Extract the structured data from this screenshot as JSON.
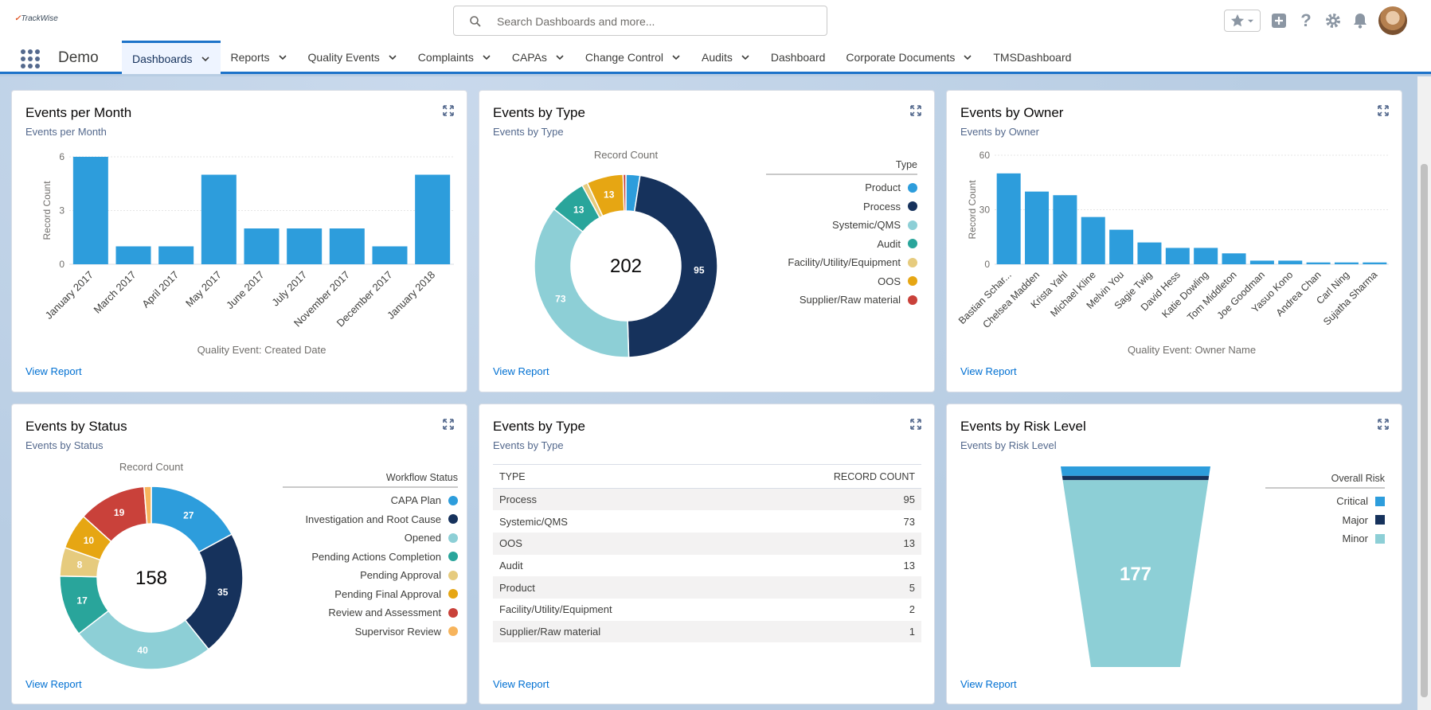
{
  "header": {
    "logo_text": "TrackWise",
    "search_placeholder": "Search Dashboards and more..."
  },
  "nav": {
    "app_name": "Demo",
    "tabs": [
      {
        "label": "Dashboards",
        "dropdown": true,
        "active": true
      },
      {
        "label": "Reports",
        "dropdown": true
      },
      {
        "label": "Quality Events",
        "dropdown": true
      },
      {
        "label": "Complaints",
        "dropdown": true
      },
      {
        "label": "CAPAs",
        "dropdown": true
      },
      {
        "label": "Change Control",
        "dropdown": true
      },
      {
        "label": "Audits",
        "dropdown": true
      },
      {
        "label": "Dashboard",
        "dropdown": false
      },
      {
        "label": "Corporate Documents",
        "dropdown": true
      },
      {
        "label": "TMSDashboard",
        "dropdown": false
      }
    ]
  },
  "colors": {
    "accent": "#1d73c9",
    "link": "#0070d2",
    "product": "#2d9ddc",
    "process": "#16325c",
    "systemic": "#8dcfd6",
    "audit": "#29a59b",
    "facility": "#e6cb7e",
    "oos": "#e6a613",
    "supplier": "#c9413a",
    "lightorange": "#f7b45c"
  },
  "view_report_label": "View Report",
  "cards": {
    "events_per_month": {
      "title": "Events per Month",
      "subtitle": "Events per Month",
      "ylabel": "Record Count",
      "xlabel": "Quality Event: Created Date",
      "ticks": [
        "6",
        "3",
        "0"
      ]
    },
    "events_by_type_donut": {
      "title": "Events by Type",
      "subtitle": "Events by Type",
      "chart_title": "Record Count",
      "total": "202",
      "legend_title": "Type"
    },
    "events_by_owner": {
      "title": "Events by Owner",
      "subtitle": "Events by Owner",
      "ylabel": "Record Count",
      "xlabel": "Quality Event: Owner Name",
      "ticks": [
        "60",
        "30",
        "0"
      ]
    },
    "events_by_status": {
      "title": "Events by Status",
      "subtitle": "Events by Status",
      "chart_title": "Record Count",
      "total": "158",
      "legend_title": "Workflow Status"
    },
    "events_by_type_table": {
      "title": "Events by Type",
      "subtitle": "Events by Type",
      "col_type": "TYPE",
      "col_count": "RECORD COUNT",
      "rows": [
        {
          "type": "Process",
          "count": "95"
        },
        {
          "type": "Systemic/QMS",
          "count": "73"
        },
        {
          "type": "OOS",
          "count": "13"
        },
        {
          "type": "Audit",
          "count": "13"
        },
        {
          "type": "Product",
          "count": "5"
        },
        {
          "type": "Facility/Utility/Equipment",
          "count": "2"
        },
        {
          "type": "Supplier/Raw material",
          "count": "1"
        }
      ]
    },
    "events_by_risk": {
      "title": "Events by Risk Level",
      "subtitle": "Events by Risk Level",
      "legend_title": "Overall Risk",
      "center_label": "177"
    }
  },
  "chart_data": [
    {
      "type": "bar",
      "title": "Events per Month",
      "xlabel": "Quality Event: Created Date",
      "ylabel": "Record Count",
      "categories": [
        "January 2017",
        "March 2017",
        "April 2017",
        "May 2017",
        "June 2017",
        "July 2017",
        "November 2017",
        "December 2017",
        "January 2018"
      ],
      "values": [
        6,
        1,
        1,
        5,
        2,
        2,
        2,
        1,
        5
      ],
      "ylim": [
        0,
        6
      ],
      "grid": true
    },
    {
      "type": "pie",
      "title": "Record Count",
      "legend_title": "Type",
      "legend_position": "right",
      "categories": [
        "Product",
        "Process",
        "Systemic/QMS",
        "Audit",
        "Facility/Utility/Equipment",
        "OOS",
        "Supplier/Raw material"
      ],
      "values": [
        5,
        95,
        73,
        13,
        2,
        13,
        1
      ],
      "colors": [
        "#2d9ddc",
        "#16325c",
        "#8dcfd6",
        "#29a59b",
        "#e6cb7e",
        "#e6a613",
        "#c9413a"
      ],
      "total": 202
    },
    {
      "type": "bar",
      "title": "Events by Owner",
      "xlabel": "Quality Event: Owner Name",
      "ylabel": "Record Count",
      "categories": [
        "Bastian Schar...",
        "Chelsea Madden",
        "Krista Yahl",
        "Michael Kline",
        "Melvin You",
        "Sagie Twig",
        "David Hess",
        "Katie Dowling",
        "Tom Middleton",
        "Joe Goodman",
        "Yasuo Kono",
        "Andrea Chan",
        "Carl Ning",
        "Sujatha Sharma"
      ],
      "values": [
        50,
        40,
        38,
        26,
        19,
        12,
        9,
        9,
        6,
        2,
        2,
        1,
        1,
        1
      ],
      "ylim": [
        0,
        60
      ],
      "grid": true
    },
    {
      "type": "pie",
      "title": "Record Count",
      "legend_title": "Workflow Status",
      "legend_position": "right",
      "categories": [
        "CAPA Plan",
        "Investigation and Root Cause",
        "Opened",
        "Pending Actions Completion",
        "Pending Approval",
        "Pending Final Approval",
        "Review and Assessment",
        "Supervisor Review"
      ],
      "values": [
        27,
        35,
        40,
        17,
        8,
        10,
        19,
        2
      ],
      "colors": [
        "#2d9ddc",
        "#16325c",
        "#8dcfd6",
        "#29a59b",
        "#e6cb7e",
        "#e6a613",
        "#c9413a",
        "#f7b45c"
      ],
      "total": 158
    },
    {
      "type": "table",
      "title": "Events by Type",
      "columns": [
        "TYPE",
        "RECORD COUNT"
      ],
      "rows": [
        [
          "Process",
          95
        ],
        [
          "Systemic/QMS",
          73
        ],
        [
          "OOS",
          13
        ],
        [
          "Audit",
          13
        ],
        [
          "Product",
          5
        ],
        [
          "Facility/Utility/Equipment",
          2
        ],
        [
          "Supplier/Raw material",
          1
        ]
      ]
    },
    {
      "type": "funnel",
      "title": "Events by Risk Level",
      "legend_title": "Overall Risk",
      "legend_position": "right",
      "categories": [
        "Critical",
        "Major",
        "Minor"
      ],
      "values": [
        9,
        4,
        177
      ],
      "colors": [
        "#2d9ddc",
        "#16325c",
        "#8dcfd6"
      ]
    }
  ]
}
